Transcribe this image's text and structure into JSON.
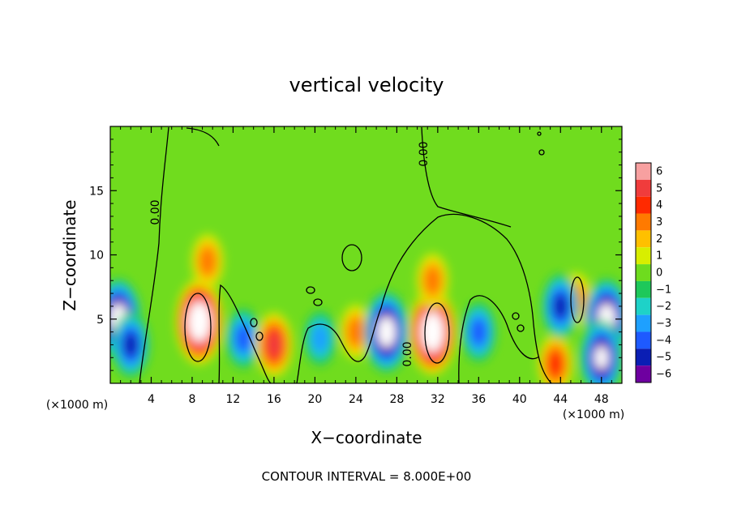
{
  "chart_data": {
    "type": "heatmap",
    "title": "vertical velocity",
    "xlabel": "X−coordinate",
    "ylabel": "Z−coordinate",
    "x_units_label": "(×1000 m)",
    "x_units_label_right": "(×1000 m)",
    "xlim": [
      0,
      50
    ],
    "ylim": [
      0,
      20
    ],
    "x_ticks": [
      4,
      8,
      12,
      16,
      20,
      24,
      28,
      32,
      36,
      40,
      44,
      48
    ],
    "y_ticks": [
      5,
      10,
      15
    ],
    "colorbar": {
      "levels": [
        6,
        5,
        4,
        3,
        2,
        1,
        0,
        -1,
        -2,
        -3,
        -4,
        -5,
        -6
      ],
      "labels": [
        "6",
        "5",
        "4",
        "3",
        "2",
        "1",
        "0",
        "−1",
        "−2",
        "−3",
        "−4",
        "−5",
        "−6"
      ],
      "colors": [
        "#f7a0a0",
        "#f03c3c",
        "#ff2a00",
        "#ff7a00",
        "#ffc000",
        "#d8ee00",
        "#6edc1e",
        "#1ec85a",
        "#1ed2c8",
        "#1ea0ff",
        "#1e5aff",
        "#0a1eb4",
        "#6e00a0"
      ]
    },
    "contour_labels": [
      "0.00",
      "0.00",
      "0.00"
    ],
    "features": [
      {
        "x": 0.8,
        "z": 5.0,
        "value": -8
      },
      {
        "x": 2.0,
        "z": 3.0,
        "value": -5
      },
      {
        "x": 8.7,
        "z": 4.8,
        "value": 9
      },
      {
        "x": 9.5,
        "z": 9.5,
        "value": 3
      },
      {
        "x": 13.0,
        "z": 3.5,
        "value": -4
      },
      {
        "x": 16.0,
        "z": 3.0,
        "value": 5
      },
      {
        "x": 20.5,
        "z": 3.5,
        "value": -3
      },
      {
        "x": 24.0,
        "z": 4.0,
        "value": 3
      },
      {
        "x": 27.0,
        "z": 4.0,
        "value": -8
      },
      {
        "x": 31.5,
        "z": 4.0,
        "value": 9
      },
      {
        "x": 31.5,
        "z": 8.0,
        "value": 3
      },
      {
        "x": 36.0,
        "z": 4.0,
        "value": -4
      },
      {
        "x": 43.5,
        "z": 1.5,
        "value": 4
      },
      {
        "x": 45.5,
        "z": 6.5,
        "value": 3
      },
      {
        "x": 44.0,
        "z": 6.0,
        "value": -5
      },
      {
        "x": 48.5,
        "z": 5.0,
        "value": -8
      },
      {
        "x": 48.0,
        "z": 2.0,
        "value": -7
      }
    ]
  },
  "footer": "CONTOUR INTERVAL = 8.000E+00"
}
